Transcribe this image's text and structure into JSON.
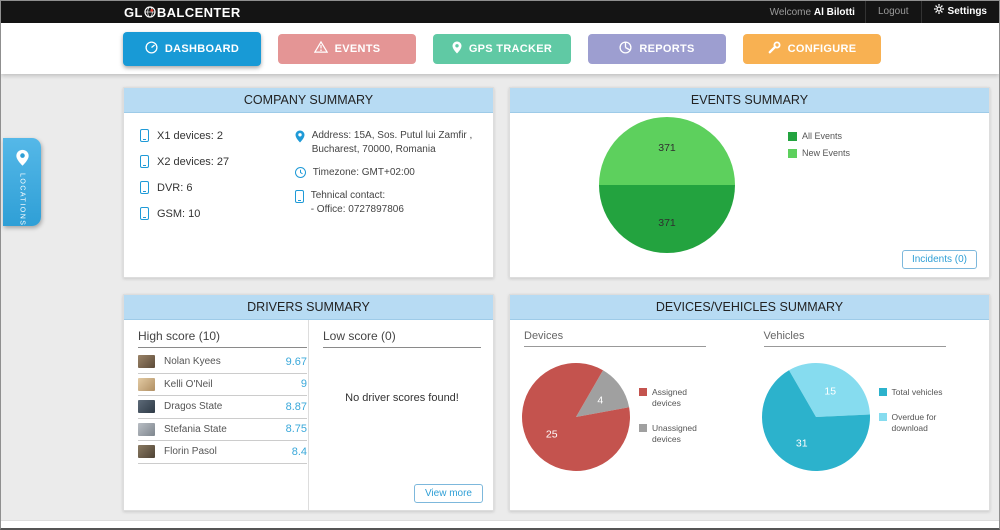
{
  "topbar": {
    "logo_gl": "GL",
    "logo_bal": "BAL",
    "logo_center": "CENTER",
    "welcome": "Welcome",
    "username": "Al Bilotti",
    "logout": "Logout",
    "settings": "Settings"
  },
  "nav": {
    "items": [
      {
        "label": "DASHBOARD",
        "color": "#189ad6",
        "active": true
      },
      {
        "label": "EVENTS",
        "color": "#e49595",
        "active": false
      },
      {
        "label": "GPS TRACKER",
        "color": "#60c9a4",
        "active": false
      },
      {
        "label": "REPORTS",
        "color": "#9d9ed0",
        "active": false
      },
      {
        "label": "CONFIGURE",
        "color": "#f8b152",
        "active": false
      }
    ]
  },
  "locations_tab": {
    "label": "LOCATIONS"
  },
  "panels": {
    "company": {
      "title": "COMPANY SUMMARY",
      "device_counts": [
        "X1 devices: 2",
        "X2 devices: 27",
        "DVR: 6",
        "GSM: 10"
      ],
      "address_line1": "Address: 15A, Sos. Putul lui Zamfir ,",
      "address_line2": "Bucharest, 70000, Romania",
      "timezone": "Timezone: GMT+02:00",
      "contact_label": "Tehnical contact:",
      "contact_office": "- Office: 0727897806"
    },
    "events": {
      "title": "EVENTS SUMMARY",
      "legend": [
        {
          "label": "All Events",
          "color": "#23a33f"
        },
        {
          "label": "New Events",
          "color": "#5dd05d"
        }
      ],
      "incidents_button": "Incidents (0)"
    },
    "drivers": {
      "title": "DRIVERS SUMMARY",
      "high_header": "High score (10)",
      "low_header": "Low score (0)",
      "high_scores": [
        {
          "name": "Nolan Kyees",
          "score": "9.67"
        },
        {
          "name": "Kelli O'Neil",
          "score": "9"
        },
        {
          "name": "Dragos State",
          "score": "8.87"
        },
        {
          "name": "Stefania State",
          "score": "8.75"
        },
        {
          "name": "Florin Pasol",
          "score": "8.4"
        }
      ],
      "low_empty_message": "No driver scores found!",
      "view_more_button": "View more"
    },
    "devices_vehicles": {
      "title": "DEVICES/VEHICLES SUMMARY",
      "devices_header": "Devices",
      "vehicles_header": "Vehicles",
      "devices_legend": [
        {
          "label": "Assigned devices",
          "color": "#c4534e"
        },
        {
          "label": "Unassigned devices",
          "color": "#a0a0a0"
        }
      ],
      "vehicles_legend": [
        {
          "label": "Total vehicles",
          "color": "#2cb2cc"
        },
        {
          "label": "Overdue for download",
          "color": "#86dcef"
        }
      ]
    }
  },
  "chart_data": [
    {
      "id": "events",
      "type": "pie",
      "title": "Events Summary",
      "labels": [
        "New Events",
        "All Events"
      ],
      "values": [
        371,
        371
      ],
      "colors": [
        "#5dd05d",
        "#23a33f"
      ],
      "label_colors": [
        "#2f2f2f",
        "#2f2f2f"
      ],
      "start_angle": -90,
      "legend_position": "top-right"
    },
    {
      "id": "devices",
      "type": "pie",
      "title": "Devices",
      "labels": [
        "Unassigned devices",
        "Assigned devices"
      ],
      "values": [
        4,
        25
      ],
      "colors": [
        "#a0a0a0",
        "#c4534e"
      ],
      "label_colors": [
        "#ffffff",
        "#ffffff"
      ],
      "start_angle": 30,
      "legend_position": "right"
    },
    {
      "id": "vehicles",
      "type": "pie",
      "title": "Vehicles",
      "labels": [
        "Overdue for download",
        "Total vehicles"
      ],
      "values": [
        15,
        31
      ],
      "colors": [
        "#86dcef",
        "#2cb2cc"
      ],
      "label_colors": [
        "#ffffff",
        "#ffffff"
      ],
      "start_angle": -30,
      "legend_position": "right"
    }
  ]
}
